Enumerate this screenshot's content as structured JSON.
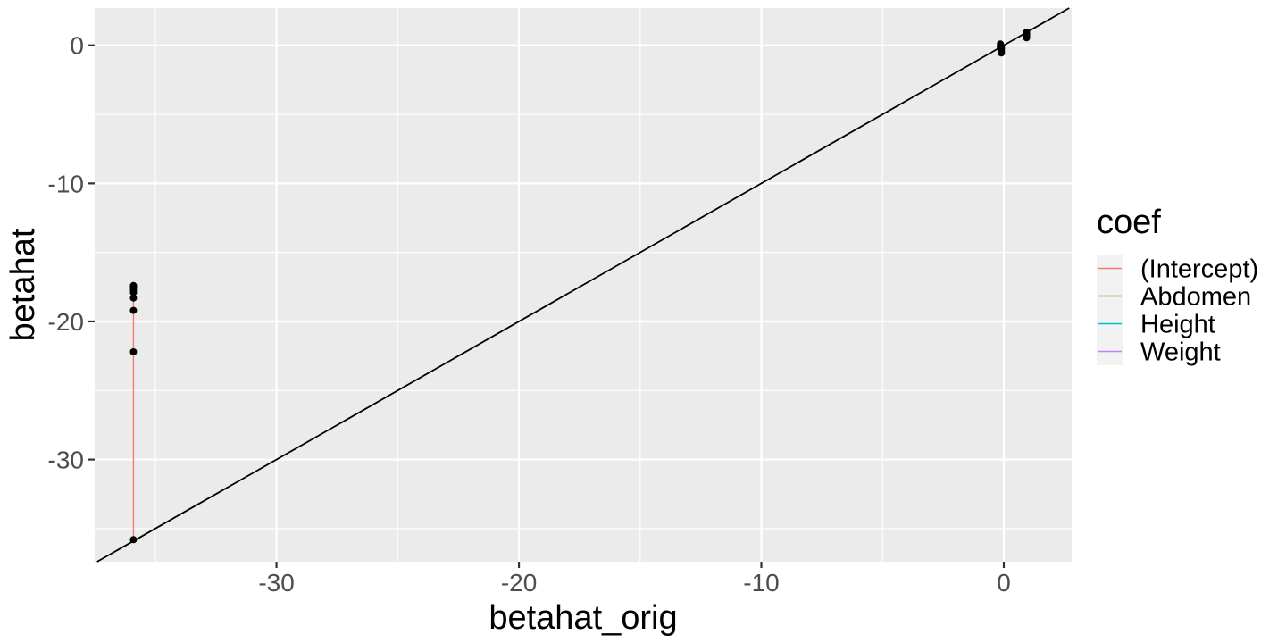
{
  "chart_data": {
    "type": "scatter",
    "title": "",
    "xlabel": "betahat_orig",
    "ylabel": "betahat",
    "xlim": [
      -37.5,
      2.8
    ],
    "ylim": [
      -37.4,
      2.7
    ],
    "x_ticks": [
      -30,
      -20,
      -10,
      0
    ],
    "x_tick_labels": [
      "-30",
      "-20",
      "-10",
      "0"
    ],
    "y_ticks": [
      0,
      -10,
      -20,
      -30
    ],
    "y_tick_labels": [
      "0",
      "-10",
      "-20",
      "-30"
    ],
    "reference_line": {
      "slope": 1,
      "intercept": 0,
      "color": "#000000"
    },
    "legend": {
      "title": "coef",
      "position": "right",
      "entries": [
        {
          "label": "(Intercept)",
          "color": "#F8766D"
        },
        {
          "label": "Abdomen",
          "color": "#7CAE00"
        },
        {
          "label": "Height",
          "color": "#00BFC4"
        },
        {
          "label": "Weight",
          "color": "#C77CFF"
        }
      ]
    },
    "series": [
      {
        "name": "(Intercept)",
        "color": "#F8766D",
        "segment": {
          "x": -35.9,
          "y_from": -35.8,
          "y_to": -17.4
        },
        "points": [
          {
            "x": -35.9,
            "y": -35.8
          },
          {
            "x": -35.9,
            "y": -22.2
          },
          {
            "x": -35.9,
            "y": -19.2
          },
          {
            "x": -35.9,
            "y": -18.3
          },
          {
            "x": -35.9,
            "y": -17.9
          },
          {
            "x": -35.9,
            "y": -17.7
          },
          {
            "x": -35.9,
            "y": -17.5
          },
          {
            "x": -35.9,
            "y": -17.4
          }
        ]
      },
      {
        "name": "Abdomen",
        "color": "#7CAE00",
        "segment": {
          "x": 0.94,
          "y_from": 0.55,
          "y_to": 1.0
        },
        "points": [
          {
            "x": 0.94,
            "y": 0.55
          },
          {
            "x": 0.94,
            "y": 0.65
          },
          {
            "x": 0.94,
            "y": 0.75
          },
          {
            "x": 0.94,
            "y": 0.85
          },
          {
            "x": 0.94,
            "y": 0.95
          }
        ]
      },
      {
        "name": "Height",
        "color": "#00BFC4",
        "segment": {
          "x": -0.1,
          "y_from": -0.55,
          "y_to": -0.1
        },
        "points": [
          {
            "x": -0.1,
            "y": -0.55
          },
          {
            "x": -0.1,
            "y": -0.45
          },
          {
            "x": -0.1,
            "y": -0.35
          },
          {
            "x": -0.1,
            "y": -0.25
          },
          {
            "x": -0.1,
            "y": -0.15
          }
        ]
      },
      {
        "name": "Weight",
        "color": "#C77CFF",
        "segment": {
          "x": -0.14,
          "y_from": -0.2,
          "y_to": 0.1
        },
        "points": [
          {
            "x": -0.14,
            "y": -0.2
          },
          {
            "x": -0.14,
            "y": -0.1
          },
          {
            "x": -0.14,
            "y": 0.0
          },
          {
            "x": -0.14,
            "y": 0.1
          }
        ]
      }
    ],
    "point_color": "#000000",
    "grid": true,
    "panel_background": "#EBEBEB",
    "gridline_color": "#FFFFFF"
  }
}
